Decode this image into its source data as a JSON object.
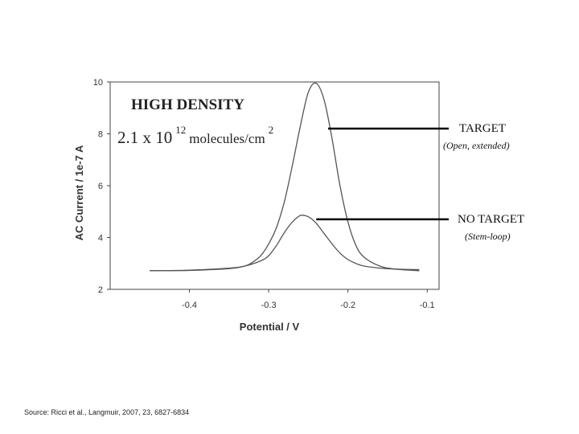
{
  "chart_data": {
    "type": "line",
    "title": "HIGH DENSITY",
    "subtitle": {
      "prefix": "2.1 x 10",
      "exponent": "12",
      "middle": " molecules/cm",
      "unit_exponent": "2"
    },
    "xlabel": "Potential / V",
    "ylabel": "AC Current / 1e-7 A",
    "xlim": [
      -0.5,
      -0.085
    ],
    "ylim": [
      2,
      10
    ],
    "x_ticks": [
      -0.4,
      -0.3,
      -0.2,
      -0.1
    ],
    "x_tick_labels": [
      "-0.4",
      "-0.3",
      "-0.2",
      "-0.1"
    ],
    "y_ticks": [
      2,
      4,
      6,
      8,
      10
    ],
    "y_tick_labels": [
      "2",
      "4",
      "6",
      "8",
      "10"
    ],
    "grid": false,
    "colors": {
      "line": "#555555",
      "axis": "#444444",
      "annotation_line": "#000000",
      "text": "#222222"
    },
    "series": [
      {
        "x": [
          -0.45,
          -0.4,
          -0.35,
          -0.33,
          -0.32,
          -0.31,
          -0.3,
          -0.29,
          -0.28,
          -0.27,
          -0.26,
          -0.25,
          -0.24,
          -0.23,
          -0.22,
          -0.21,
          -0.2,
          -0.19,
          -0.18,
          -0.16,
          -0.14,
          -0.11
        ],
        "y": [
          2.72,
          2.73,
          2.8,
          2.9,
          3.05,
          3.3,
          3.75,
          4.4,
          5.4,
          6.8,
          8.3,
          9.6,
          9.95,
          9.3,
          7.8,
          6.0,
          4.6,
          3.7,
          3.25,
          2.9,
          2.78,
          2.72
        ]
      },
      {
        "x": [
          -0.45,
          -0.4,
          -0.35,
          -0.33,
          -0.31,
          -0.3,
          -0.29,
          -0.28,
          -0.27,
          -0.26,
          -0.25,
          -0.24,
          -0.23,
          -0.22,
          -0.21,
          -0.2,
          -0.19,
          -0.18,
          -0.16,
          -0.14,
          -0.11
        ],
        "y": [
          2.72,
          2.74,
          2.82,
          2.9,
          3.1,
          3.3,
          3.7,
          4.2,
          4.6,
          4.85,
          4.8,
          4.55,
          4.15,
          3.75,
          3.4,
          3.15,
          3.0,
          2.9,
          2.82,
          2.78,
          2.76
        ]
      }
    ],
    "annotations": [
      {
        "label": "TARGET",
        "sublabel": "(Open, extended)",
        "x_start": -0.225,
        "y": 8.2
      },
      {
        "label": "NO TARGET",
        "sublabel": "(Stem-loop)",
        "x_start": -0.24,
        "y": 4.7
      }
    ]
  },
  "source": "Source:  Ricci et al., Langmuir, 2007, 23, 6827-6834"
}
